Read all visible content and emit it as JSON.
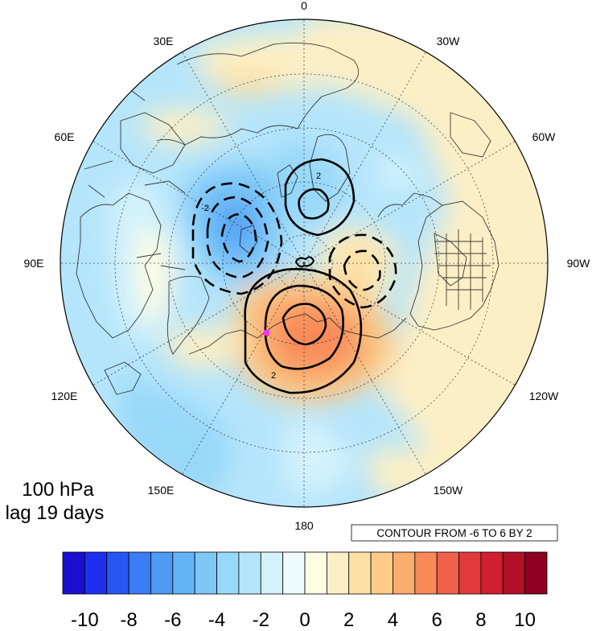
{
  "map": {
    "level_label": "100 hPa",
    "lag_label": "lag 19 days",
    "contour_note": "CONTOUR FROM -6 TO 6 BY 2",
    "longitude_labels": [
      "0",
      "30W",
      "60W",
      "90W",
      "120W",
      "150W",
      "180",
      "150E",
      "120E",
      "90E",
      "60E",
      "30E"
    ],
    "contour_labels": [
      "2",
      "-2",
      "2"
    ],
    "marker_color": "#ff33ff"
  },
  "colorbar": {
    "tick_labels": [
      "-10",
      "-8",
      "-6",
      "-4",
      "-2",
      "0",
      "2",
      "4",
      "6",
      "8",
      "10"
    ],
    "colors": [
      "#1a0fd0",
      "#1e2ff0",
      "#2a55f5",
      "#3c7cf5",
      "#4e9af5",
      "#63b4f7",
      "#7ec8f8",
      "#98d8f9",
      "#b5e5fb",
      "#d4f2fc",
      "#eefbfc",
      "#fefce3",
      "#fdefc5",
      "#fde0a5",
      "#fccb87",
      "#fbad6e",
      "#f88a5a",
      "#f0604a",
      "#e23a3a",
      "#cf1f30",
      "#b20f28",
      "#8f0020"
    ]
  }
}
